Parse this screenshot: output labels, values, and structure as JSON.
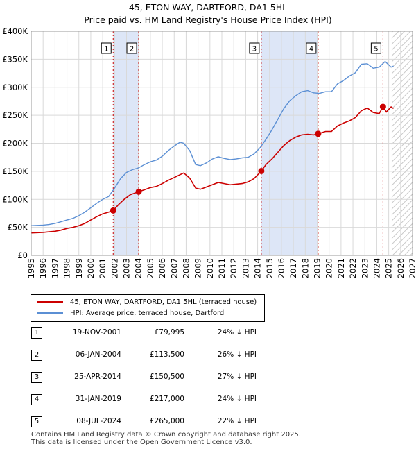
{
  "title": "45, ETON WAY, DARTFORD, DA1 5HL",
  "subtitle": "Price paid vs. HM Land Registry's House Price Index (HPI)",
  "colors": {
    "property": "#cc0000",
    "hpi": "#5b8fd4",
    "shade": "#dde6f7",
    "sale_line": "#cc0000"
  },
  "legend": {
    "property_label": "45, ETON WAY, DARTFORD, DA1 5HL (terraced house)",
    "hpi_label": "HPI: Average price, terraced house, Dartford"
  },
  "chart_data": {
    "type": "line",
    "title": "45, ETON WAY, DARTFORD, DA1 5HL",
    "subtitle": "Price paid vs. HM Land Registry's House Price Index (HPI)",
    "xlim": [
      1995,
      2027
    ],
    "ylim": [
      0,
      400000
    ],
    "x_ticks": [
      1995,
      1996,
      1997,
      1998,
      1999,
      2000,
      2001,
      2002,
      2003,
      2004,
      2005,
      2006,
      2007,
      2008,
      2009,
      2010,
      2011,
      2012,
      2013,
      2014,
      2015,
      2016,
      2017,
      2018,
      2019,
      2020,
      2021,
      2022,
      2023,
      2024,
      2025,
      2026,
      2027
    ],
    "y_ticks": [
      0,
      50000,
      100000,
      150000,
      200000,
      250000,
      300000,
      350000,
      400000
    ],
    "y_tick_labels": [
      "£0",
      "£50K",
      "£100K",
      "£150K",
      "£200K",
      "£250K",
      "£300K",
      "£350K",
      "£400K"
    ],
    "shaded_spans": [
      [
        2001.88,
        2004.02
      ],
      [
        2014.31,
        2019.08
      ]
    ],
    "future_hatch_from": 2025.25,
    "series": [
      {
        "name": "HPI: Average price, terraced house, Dartford",
        "x": [
          1995.0,
          1995.5,
          1996.0,
          1996.5,
          1997.0,
          1997.5,
          1998.0,
          1998.5,
          1999.0,
          1999.5,
          2000.0,
          2000.5,
          2001.0,
          2001.5,
          2002.0,
          2002.5,
          2003.0,
          2003.5,
          2004.0,
          2004.5,
          2005.0,
          2005.5,
          2006.0,
          2006.5,
          2007.0,
          2007.5,
          2007.8,
          2008.3,
          2008.8,
          2009.2,
          2009.7,
          2010.2,
          2010.7,
          2011.2,
          2011.7,
          2012.2,
          2012.7,
          2013.2,
          2013.7,
          2014.2,
          2014.7,
          2015.2,
          2015.7,
          2016.2,
          2016.7,
          2017.2,
          2017.7,
          2018.2,
          2018.7,
          2019.2,
          2019.7,
          2020.2,
          2020.7,
          2021.2,
          2021.7,
          2022.2,
          2022.7,
          2023.2,
          2023.7,
          2024.2,
          2024.7,
          2025.2,
          2025.4
        ],
        "y": [
          53000,
          53500,
          54000,
          55000,
          57000,
          60000,
          63000,
          66000,
          71000,
          77000,
          85000,
          93000,
          100000,
          105000,
          120000,
          137000,
          148000,
          153000,
          156000,
          162000,
          167000,
          170000,
          177000,
          187000,
          195000,
          202000,
          200000,
          187000,
          162000,
          160000,
          165000,
          172000,
          176000,
          173000,
          171000,
          172000,
          174000,
          175000,
          181000,
          192000,
          207000,
          224000,
          243000,
          262000,
          276000,
          285000,
          292000,
          294000,
          290000,
          289000,
          292000,
          292000,
          306000,
          312000,
          320000,
          326000,
          341000,
          342000,
          334000,
          336000,
          346000,
          336000,
          338000
        ]
      },
      {
        "name": "45, ETON WAY, DARTFORD, DA1 5HL (terraced house)",
        "x": [
          1995.0,
          1995.5,
          1996.0,
          1996.5,
          1997.0,
          1997.5,
          1998.0,
          1998.5,
          1999.0,
          1999.5,
          2000.0,
          2000.5,
          2001.0,
          2001.5,
          2001.88,
          2002.3,
          2002.8,
          2003.3,
          2004.02,
          2004.5,
          2005.0,
          2005.5,
          2006.0,
          2006.5,
          2007.0,
          2007.5,
          2007.8,
          2008.3,
          2008.8,
          2009.2,
          2009.7,
          2010.2,
          2010.7,
          2011.2,
          2011.7,
          2012.2,
          2012.7,
          2013.2,
          2013.7,
          2014.31,
          2014.7,
          2015.2,
          2015.7,
          2016.2,
          2016.7,
          2017.2,
          2017.7,
          2018.2,
          2018.7,
          2019.08,
          2019.7,
          2020.2,
          2020.7,
          2021.2,
          2021.7,
          2022.2,
          2022.7,
          2023.2,
          2023.7,
          2024.2,
          2024.52,
          2024.8,
          2025.2,
          2025.4
        ],
        "y": [
          40000,
          40500,
          41000,
          42000,
          43000,
          45000,
          48000,
          50000,
          53000,
          57000,
          63000,
          69000,
          74000,
          77000,
          79995,
          90000,
          100000,
          108000,
          113500,
          117000,
          121000,
          123000,
          128000,
          134000,
          139000,
          144000,
          147000,
          138000,
          120000,
          118000,
          122000,
          126000,
          130000,
          128000,
          126000,
          127000,
          128000,
          131000,
          137000,
          150500,
          162000,
          172000,
          184000,
          196000,
          205000,
          211000,
          215000,
          216000,
          215000,
          217000,
          221000,
          221000,
          231000,
          236000,
          240000,
          246000,
          258000,
          263000,
          255000,
          253000,
          265000,
          256000,
          265000,
          262000
        ]
      }
    ],
    "sales": [
      {
        "num": "1",
        "x": 2001.88,
        "y": 79995
      },
      {
        "num": "2",
        "x": 2004.02,
        "y": 113500
      },
      {
        "num": "3",
        "x": 2014.31,
        "y": 150500
      },
      {
        "num": "4",
        "x": 2019.08,
        "y": 217000
      },
      {
        "num": "5",
        "x": 2024.52,
        "y": 265000
      }
    ]
  },
  "sales_table": [
    {
      "num": "1",
      "date": "19-NOV-2001",
      "price": "£79,995",
      "hpi": "24% ↓ HPI"
    },
    {
      "num": "2",
      "date": "06-JAN-2004",
      "price": "£113,500",
      "hpi": "26% ↓ HPI"
    },
    {
      "num": "3",
      "date": "25-APR-2014",
      "price": "£150,500",
      "hpi": "27% ↓ HPI"
    },
    {
      "num": "4",
      "date": "31-JAN-2019",
      "price": "£217,000",
      "hpi": "24% ↓ HPI"
    },
    {
      "num": "5",
      "date": "08-JUL-2024",
      "price": "£265,000",
      "hpi": "22% ↓ HPI"
    }
  ],
  "footer": {
    "line1": "Contains HM Land Registry data © Crown copyright and database right 2025.",
    "line2": "This data is licensed under the Open Government Licence v3.0."
  }
}
